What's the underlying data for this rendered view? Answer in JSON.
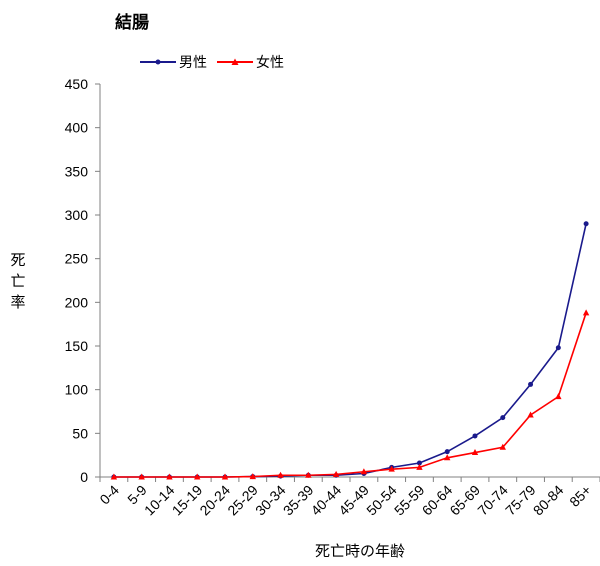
{
  "chart_data": {
    "type": "line",
    "title": "結腸",
    "xlabel": "死亡時の年齢",
    "ylabel": "死亡率",
    "ylim": [
      0,
      450
    ],
    "yticks": [
      "0",
      "50",
      "100",
      "150",
      "200",
      "250",
      "300",
      "350",
      "400",
      "450"
    ],
    "categories": [
      "0-4",
      "5-9",
      "10-14",
      "15-19",
      "20-24",
      "25-29",
      "30-34",
      "35-39",
      "40-44",
      "45-49",
      "50-54",
      "55-59",
      "60-64",
      "65-69",
      "70-74",
      "75-79",
      "80-84",
      "85+"
    ],
    "series": [
      {
        "name": "男性",
        "color": "#1a1a8c",
        "marker": "circle",
        "values": [
          0,
          0,
          0,
          0,
          0,
          0.5,
          1,
          2,
          2,
          4,
          11,
          16,
          29,
          47,
          68,
          106,
          148,
          290
        ]
      },
      {
        "name": "女性",
        "color": "#ff0000",
        "marker": "triangle",
        "values": [
          0,
          0,
          0,
          0,
          0,
          0.5,
          2,
          2,
          3,
          6,
          9,
          11,
          22,
          28,
          34,
          71,
          92,
          188
        ]
      }
    ],
    "grid": false,
    "legend": "top-left"
  }
}
